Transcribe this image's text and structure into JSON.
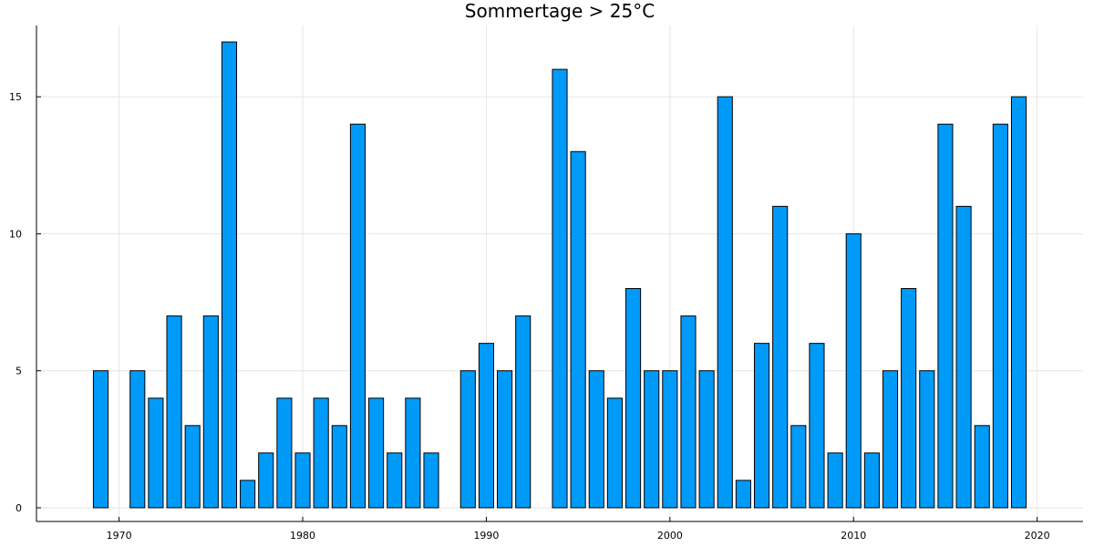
{
  "chart_data": {
    "type": "bar",
    "title": "Sommertage > 25°C",
    "xlabel": "",
    "ylabel": "",
    "bar_color": "#009af9",
    "grid": true,
    "legend": "none",
    "xlim": [
      1965.5,
      2022.5
    ],
    "ylim": [
      -0.5,
      17.6
    ],
    "xticks": [
      1970,
      1980,
      1990,
      2000,
      2010,
      2020
    ],
    "yticks": [
      0,
      5,
      10,
      15
    ],
    "x": [
      1969,
      1971,
      1972,
      1973,
      1974,
      1975,
      1976,
      1977,
      1978,
      1979,
      1980,
      1981,
      1982,
      1983,
      1984,
      1985,
      1986,
      1987,
      1989,
      1990,
      1991,
      1992,
      1994,
      1995,
      1996,
      1997,
      1998,
      1999,
      2000,
      2001,
      2002,
      2003,
      2004,
      2005,
      2006,
      2007,
      2008,
      2009,
      2010,
      2011,
      2012,
      2013,
      2014,
      2015,
      2016,
      2017,
      2018,
      2019
    ],
    "values": [
      5,
      5,
      4,
      7,
      3,
      7,
      17,
      1,
      2,
      4,
      2,
      4,
      3,
      14,
      4,
      2,
      4,
      2,
      5,
      6,
      5,
      7,
      16,
      13,
      5,
      4,
      8,
      5,
      5,
      7,
      5,
      15,
      1,
      6,
      11,
      3,
      6,
      2,
      10,
      2,
      5,
      8,
      5,
      14,
      11,
      3,
      14,
      15
    ]
  }
}
